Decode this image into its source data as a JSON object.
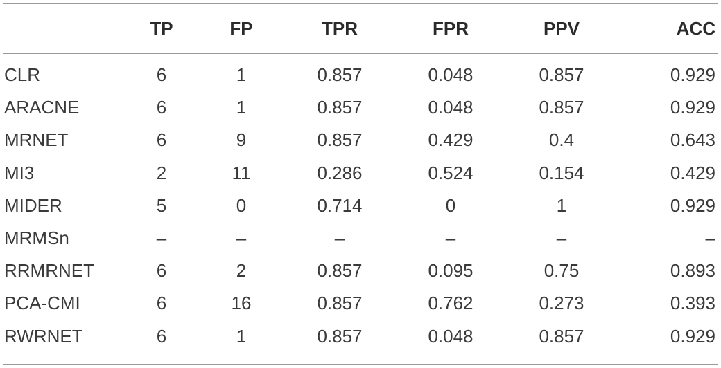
{
  "table": {
    "headers": [
      "",
      "TP",
      "FP",
      "TPR",
      "FPR",
      "PPV",
      "ACC"
    ],
    "rows": [
      [
        "CLR",
        "6",
        "1",
        "0.857",
        "0.048",
        "0.857",
        "0.929"
      ],
      [
        "ARACNE",
        "6",
        "1",
        "0.857",
        "0.048",
        "0.857",
        "0.929"
      ],
      [
        "MRNET",
        "6",
        "9",
        "0.857",
        "0.429",
        "0.4",
        "0.643"
      ],
      [
        "MI3",
        "2",
        "11",
        "0.286",
        "0.524",
        "0.154",
        "0.429"
      ],
      [
        "MIDER",
        "5",
        "0",
        "0.714",
        "0",
        "1",
        "0.929"
      ],
      [
        "MRMSn",
        "–",
        "–",
        "–",
        "–",
        "–",
        "–"
      ],
      [
        "RRMRNET",
        "6",
        "2",
        "0.857",
        "0.095",
        "0.75",
        "0.893"
      ],
      [
        "PCA-CMI",
        "6",
        "16",
        "0.857",
        "0.762",
        "0.273",
        "0.393"
      ],
      [
        "RWRNET",
        "6",
        "1",
        "0.857",
        "0.048",
        "0.857",
        "0.929"
      ]
    ]
  }
}
